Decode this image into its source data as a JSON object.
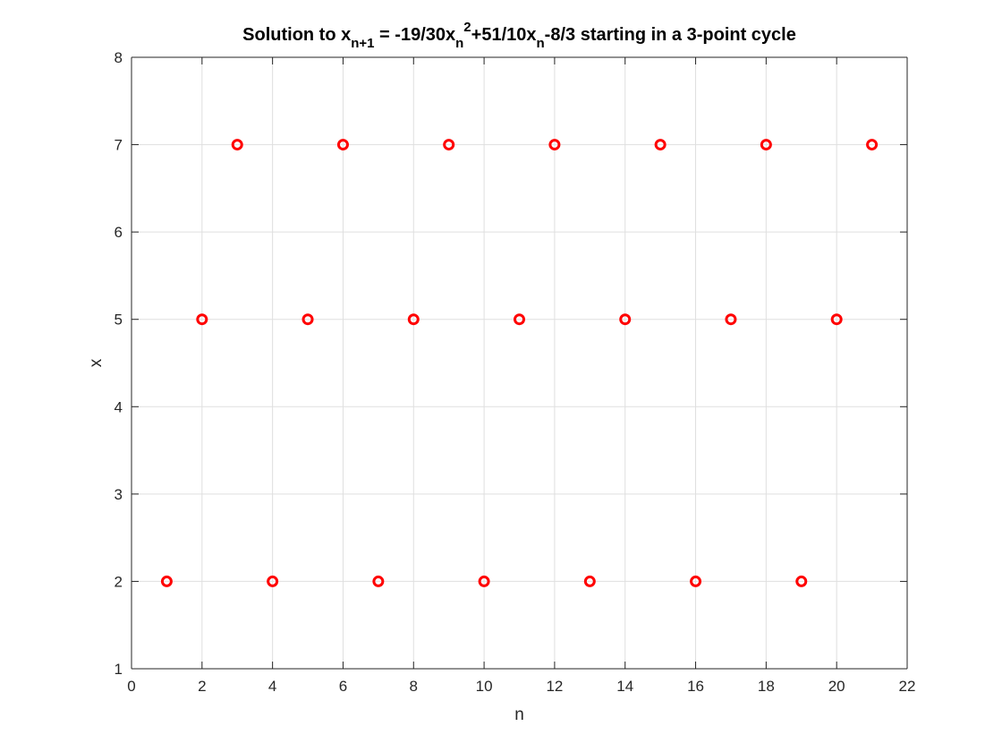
{
  "chart_data": {
    "type": "scatter",
    "title": "Solution to x",
    "title_parts": [
      {
        "text": "Solution to x",
        "shift": "none"
      },
      {
        "text": "n+1",
        "shift": "sub"
      },
      {
        "text": " = -19/30x",
        "shift": "none"
      },
      {
        "text": "n",
        "shift": "sub"
      },
      {
        "text": "2",
        "shift": "super"
      },
      {
        "text": "+51/10x",
        "shift": "none"
      },
      {
        "text": "n",
        "shift": "sub"
      },
      {
        "text": "-8/3 starting in a 3-point cycle",
        "shift": "none"
      }
    ],
    "xlabel": "n",
    "ylabel": "x",
    "xlim": [
      0,
      22
    ],
    "ylim": [
      1,
      8
    ],
    "xticks": [
      0,
      2,
      4,
      6,
      8,
      10,
      12,
      14,
      16,
      18,
      20,
      22
    ],
    "yticks": [
      1,
      2,
      3,
      4,
      5,
      6,
      7,
      8
    ],
    "grid": true,
    "marker": "circle-open",
    "series": [
      {
        "x": [
          1,
          2,
          3,
          4,
          5,
          6,
          7,
          8,
          9,
          10,
          11,
          12,
          13,
          14,
          15,
          16,
          17,
          18,
          19,
          20,
          21
        ],
        "y": [
          2,
          5,
          7,
          2,
          5,
          7,
          2,
          5,
          7,
          2,
          5,
          7,
          2,
          5,
          7,
          2,
          5,
          7,
          2,
          5,
          7
        ],
        "color": "#ff0000"
      }
    ],
    "colors": {
      "axis": "#262626",
      "grid": "#dfdfdf",
      "background": "#ffffff"
    }
  }
}
